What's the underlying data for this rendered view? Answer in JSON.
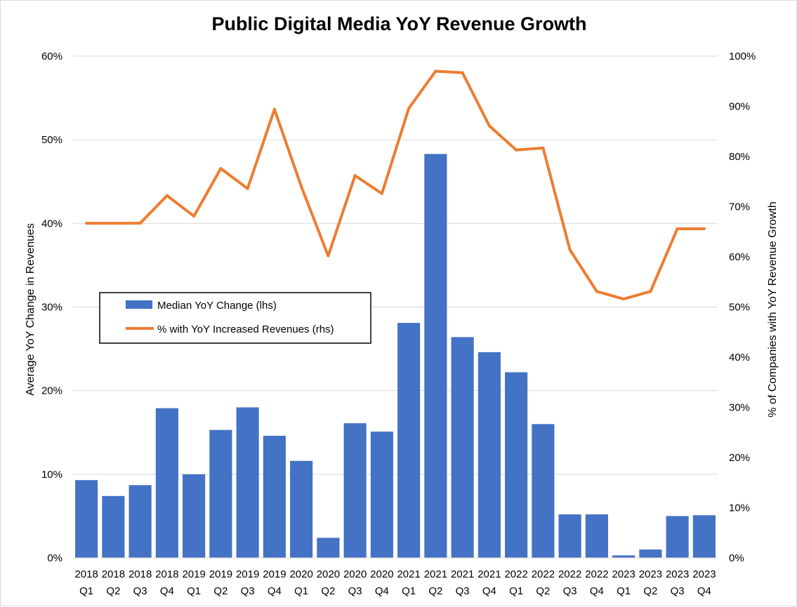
{
  "chart_data": {
    "type": "bar",
    "title": "Public Digital Media YoY Revenue Growth",
    "ylabel": "Average YoY Change in Revenues",
    "y2label": "% of Companies with YoY Revenue Growth",
    "ylim": [
      0,
      60
    ],
    "y2lim": [
      0,
      100
    ],
    "y_ticks": [
      "0%",
      "10%",
      "20%",
      "30%",
      "40%",
      "50%",
      "60%"
    ],
    "y2_ticks": [
      "0%",
      "10%",
      "20%",
      "30%",
      "40%",
      "50%",
      "60%",
      "70%",
      "80%",
      "90%",
      "100%"
    ],
    "categories": [
      {
        "year": "2018",
        "quarter": "Q1"
      },
      {
        "year": "2018",
        "quarter": "Q2"
      },
      {
        "year": "2018",
        "quarter": "Q3"
      },
      {
        "year": "2018",
        "quarter": "Q4"
      },
      {
        "year": "2019",
        "quarter": "Q1"
      },
      {
        "year": "2019",
        "quarter": "Q2"
      },
      {
        "year": "2019",
        "quarter": "Q3"
      },
      {
        "year": "2019",
        "quarter": "Q4"
      },
      {
        "year": "2020",
        "quarter": "Q1"
      },
      {
        "year": "2020",
        "quarter": "Q2"
      },
      {
        "year": "2020",
        "quarter": "Q3"
      },
      {
        "year": "2020",
        "quarter": "Q4"
      },
      {
        "year": "2021",
        "quarter": "Q1"
      },
      {
        "year": "2021",
        "quarter": "Q2"
      },
      {
        "year": "2021",
        "quarter": "Q3"
      },
      {
        "year": "2021",
        "quarter": "Q4"
      },
      {
        "year": "2022",
        "quarter": "Q1"
      },
      {
        "year": "2022",
        "quarter": "Q2"
      },
      {
        "year": "2022",
        "quarter": "Q3"
      },
      {
        "year": "2022",
        "quarter": "Q4"
      },
      {
        "year": "2023",
        "quarter": "Q1"
      },
      {
        "year": "2023",
        "quarter": "Q2"
      },
      {
        "year": "2023",
        "quarter": "Q3"
      },
      {
        "year": "2023",
        "quarter": "Q4"
      }
    ],
    "series": [
      {
        "name": "Median YoY Change (lhs)",
        "type": "bar",
        "axis": "left",
        "color": "#4472C4",
        "values": [
          9.3,
          7.4,
          8.7,
          17.9,
          10.0,
          15.3,
          18.0,
          14.6,
          11.6,
          2.4,
          16.1,
          15.1,
          28.1,
          48.3,
          26.4,
          24.6,
          22.2,
          16.0,
          5.2,
          5.2,
          0.3,
          1.0,
          5.0,
          5.1
        ]
      },
      {
        "name": "% with YoY Increased Revenues (rhs)",
        "type": "line",
        "axis": "right",
        "color": "#ED7D31",
        "values": [
          66.7,
          66.7,
          66.7,
          72.2,
          68.1,
          77.6,
          73.6,
          89.4,
          74.0,
          60.2,
          76.2,
          72.6,
          89.6,
          97.0,
          96.7,
          86.1,
          81.3,
          81.7,
          61.4,
          53.1,
          51.6,
          53.1,
          65.6,
          65.6
        ]
      }
    ],
    "grid": true,
    "legend_position": "middle-left"
  }
}
